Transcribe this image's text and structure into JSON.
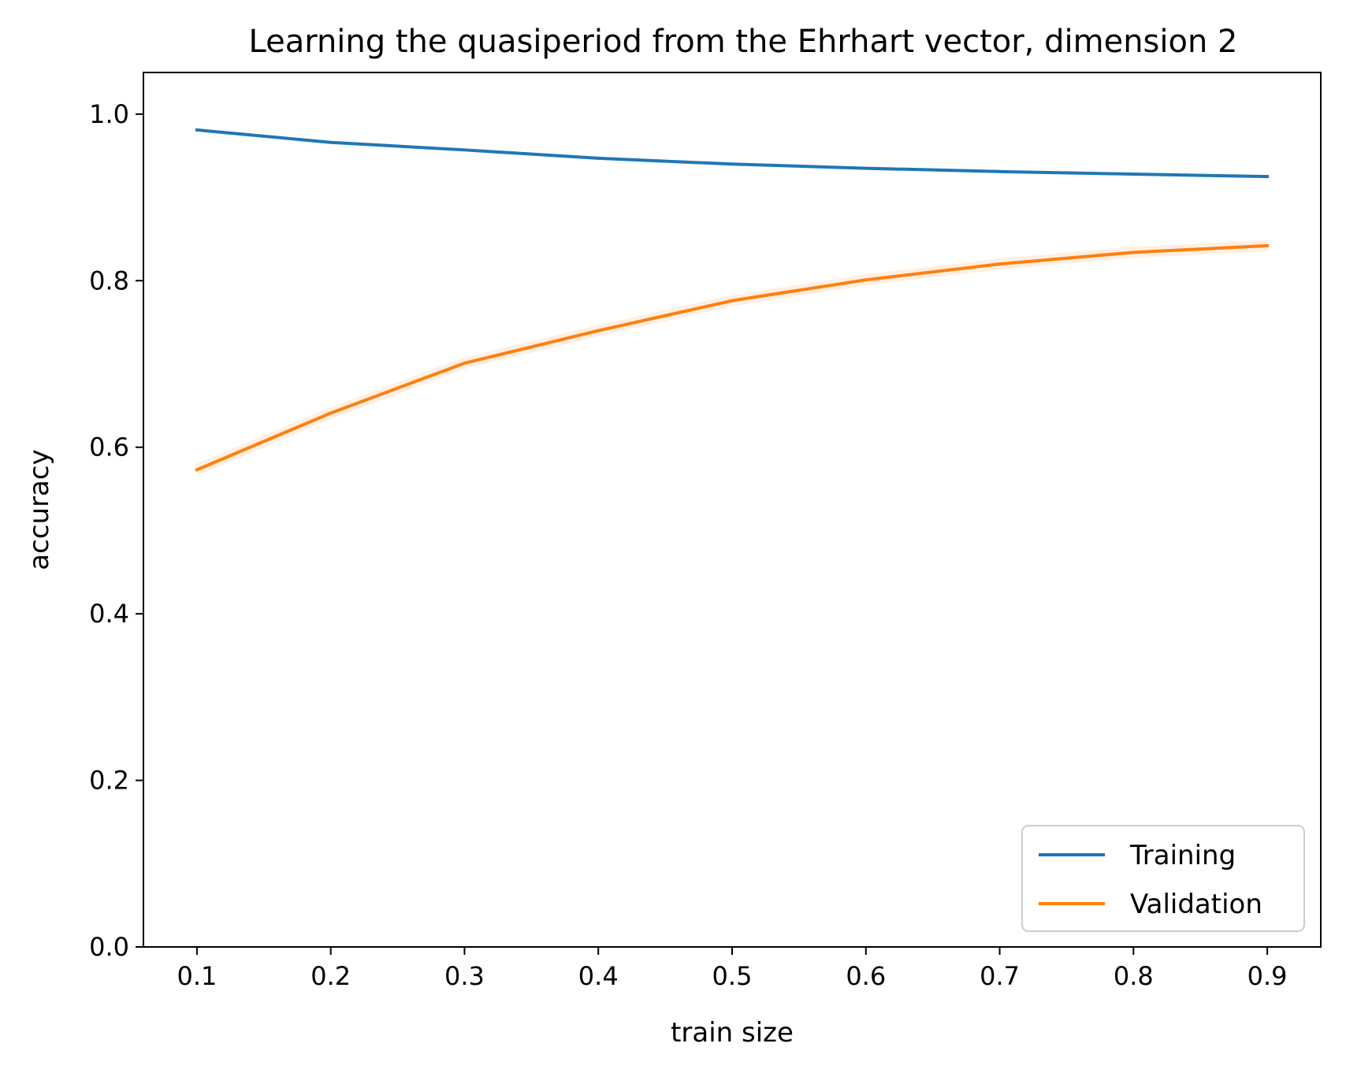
{
  "chart_data": {
    "type": "line",
    "title": "Learning the quasiperiod from the Ehrhart vector, dimension 2",
    "xlabel": "train size",
    "ylabel": "accuracy",
    "x": [
      0.1,
      0.2,
      0.3,
      0.4,
      0.5,
      0.6,
      0.7,
      0.8,
      0.9
    ],
    "x_ticks": [
      "0.1",
      "0.2",
      "0.3",
      "0.4",
      "0.5",
      "0.6",
      "0.7",
      "0.8",
      "0.9"
    ],
    "y_ticks": [
      "0.0",
      "0.2",
      "0.4",
      "0.6",
      "0.8",
      "1.0"
    ],
    "xlim": [
      0.06,
      0.94
    ],
    "ylim": [
      0.0,
      1.05
    ],
    "grid": false,
    "legend_position": "lower-right",
    "series": [
      {
        "name": "Training",
        "color": "#1f77b4",
        "values": [
          0.981,
          0.966,
          0.957,
          0.947,
          0.94,
          0.935,
          0.931,
          0.928,
          0.925
        ]
      },
      {
        "name": "Validation",
        "color": "#ff7f0e",
        "values": [
          0.573,
          0.641,
          0.701,
          0.74,
          0.776,
          0.801,
          0.82,
          0.834,
          0.842
        ]
      }
    ]
  }
}
